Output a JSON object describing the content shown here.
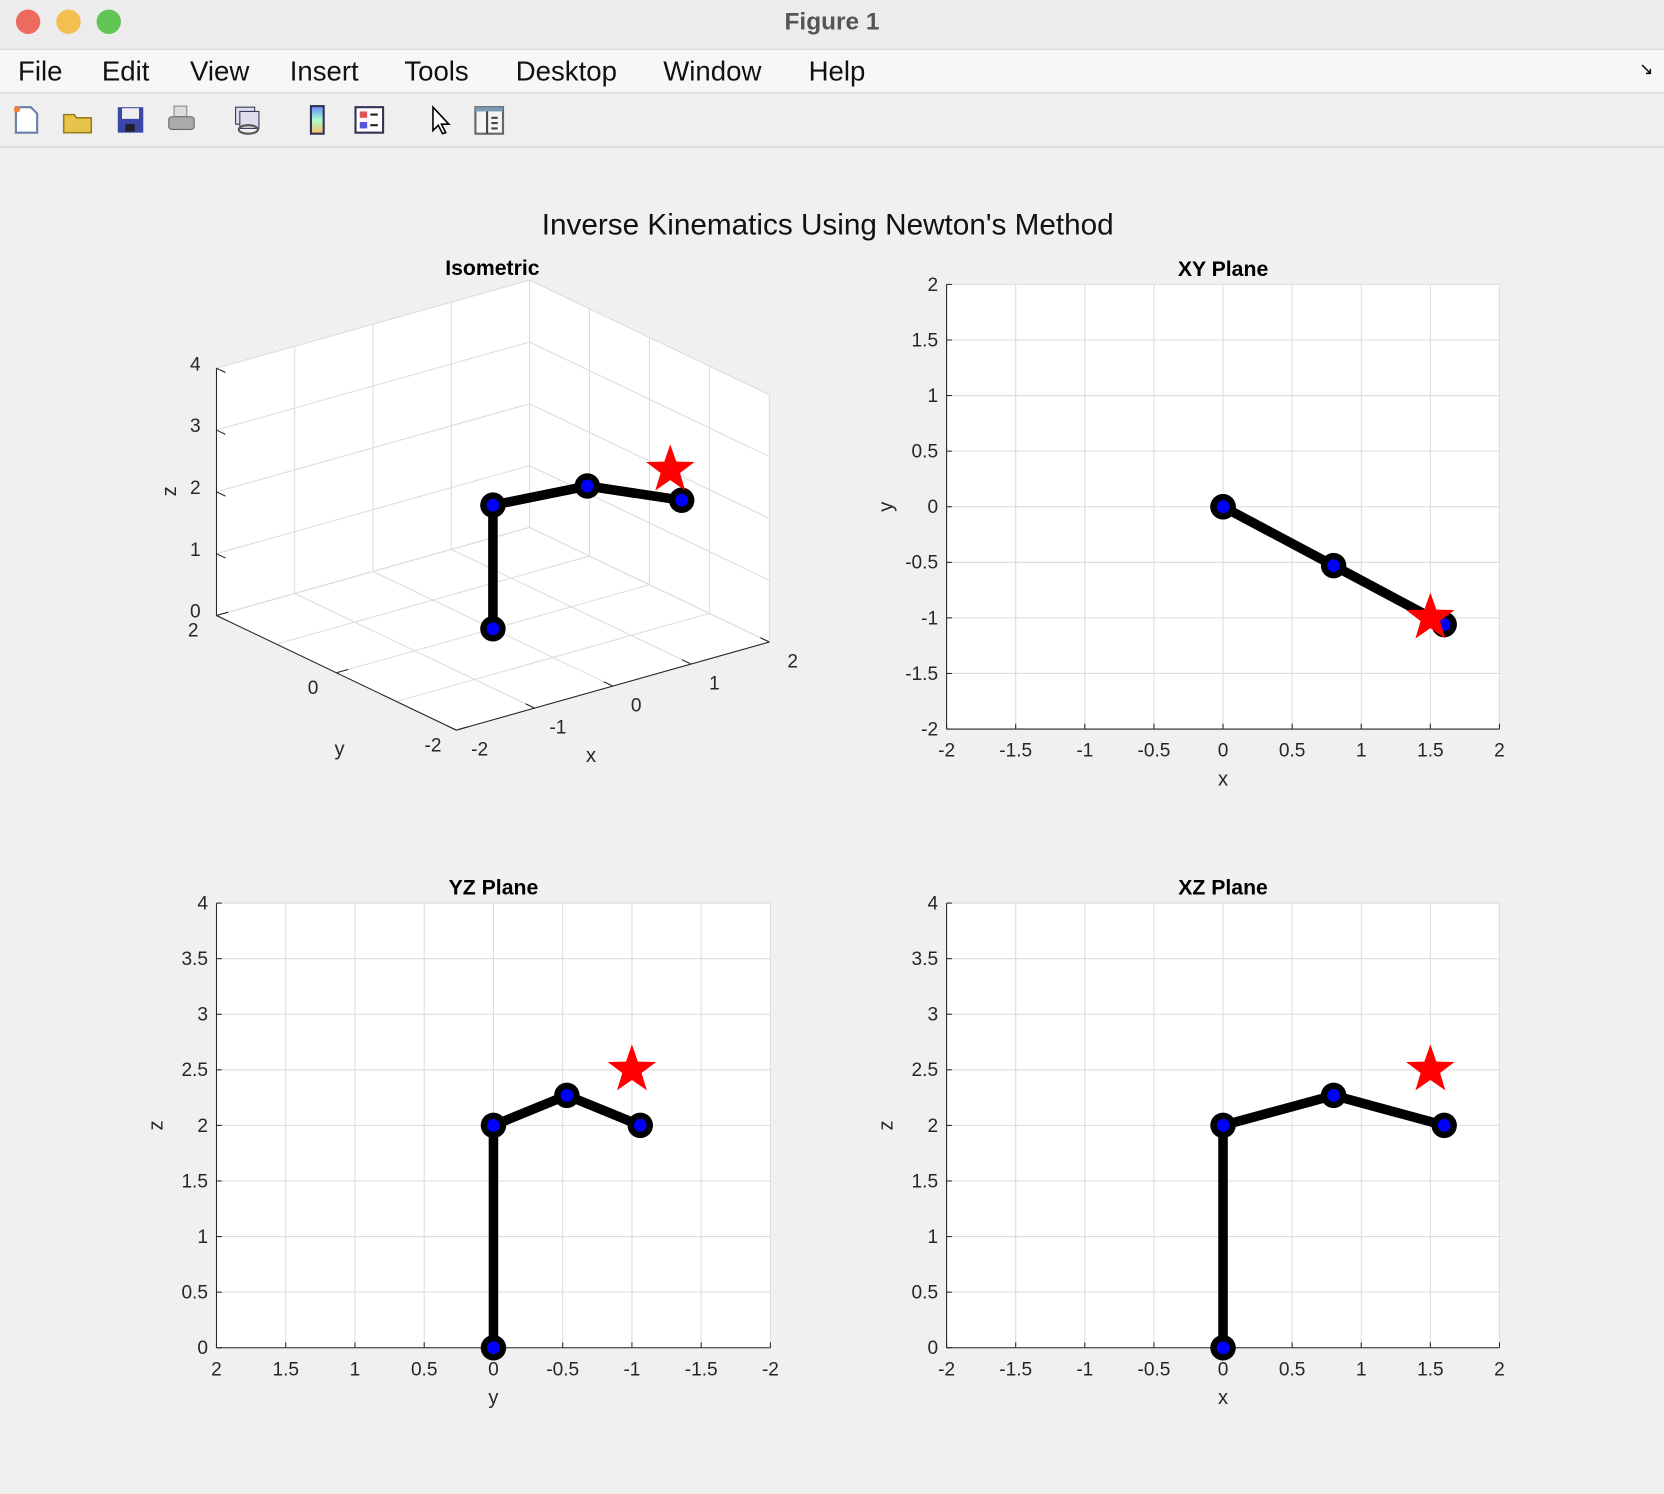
{
  "window": {
    "title": "Figure 1"
  },
  "menu": [
    "File",
    "Edit",
    "View",
    "Insert",
    "Tools",
    "Desktop",
    "Window",
    "Help"
  ],
  "toolbar": [
    "new-figure-icon",
    "open-file-icon",
    "save-icon",
    "print-icon",
    "link-plot-icon",
    "colorbar-icon",
    "legend-icon",
    "pointer-icon",
    "property-inspector-icon"
  ],
  "figure": {
    "title": "Inverse Kinematics Using Newton's Method"
  },
  "colors": {
    "link": "#000000",
    "joint": "#0000ff",
    "target": "#ff0000",
    "grid": "#dcdcdc"
  },
  "chart_data": [
    {
      "type": "line3d",
      "title": "Isometric",
      "xlabel": "x",
      "ylabel": "y",
      "zlabel": "z",
      "xlim": [
        -2,
        2
      ],
      "ylim": [
        -2,
        2
      ],
      "zlim": [
        0,
        4
      ],
      "grid": true,
      "xticks": [
        "-2",
        "-1",
        "0",
        "1",
        "2"
      ],
      "yticks": [
        "-2",
        "0",
        "2"
      ],
      "zticks": [
        "0",
        "1",
        "2",
        "3",
        "4"
      ],
      "joints": {
        "x": [
          0,
          0,
          0.8,
          1.6
        ],
        "y": [
          0,
          0,
          -0.53,
          -1.06
        ],
        "z": [
          0,
          2,
          2.27,
          2.0
        ]
      },
      "target": {
        "x": 1.5,
        "y": -1.0,
        "z": 2.5
      }
    },
    {
      "type": "line",
      "title": "XY Plane",
      "xlabel": "x",
      "ylabel": "y",
      "xlim": [
        -2,
        2
      ],
      "ylim": [
        -2,
        2
      ],
      "grid": true,
      "xticks": [
        "-2",
        "-1.5",
        "-1",
        "-0.5",
        "0",
        "0.5",
        "1",
        "1.5",
        "2"
      ],
      "yticks": [
        "-2",
        "-1.5",
        "-1",
        "-0.5",
        "0",
        "0.5",
        "1",
        "1.5",
        "2"
      ],
      "joints": {
        "x": [
          0,
          0,
          0.8,
          1.6
        ],
        "y": [
          0,
          0,
          -0.53,
          -1.06
        ]
      },
      "target": {
        "x": 1.5,
        "y": -1.0
      }
    },
    {
      "type": "line",
      "title": "YZ Plane",
      "xlabel": "y",
      "ylabel": "z",
      "xlim": [
        2,
        -2
      ],
      "ylim": [
        0,
        4
      ],
      "grid": true,
      "xticks": [
        "2",
        "1.5",
        "1",
        "0.5",
        "0",
        "-0.5",
        "-1",
        "-1.5",
        "-2"
      ],
      "yticks": [
        "0",
        "0.5",
        "1",
        "1.5",
        "2",
        "2.5",
        "3",
        "3.5",
        "4"
      ],
      "joints": {
        "x": [
          0,
          0,
          -0.53,
          -1.06
        ],
        "y": [
          0,
          2,
          2.27,
          2.0
        ]
      },
      "target": {
        "x": -1.0,
        "y": 2.5
      }
    },
    {
      "type": "line",
      "title": "XZ Plane",
      "xlabel": "x",
      "ylabel": "z",
      "xlim": [
        -2,
        2
      ],
      "ylim": [
        0,
        4
      ],
      "grid": true,
      "xticks": [
        "-2",
        "-1.5",
        "-1",
        "-0.5",
        "0",
        "0.5",
        "1",
        "1.5",
        "2"
      ],
      "yticks": [
        "0",
        "0.5",
        "1",
        "1.5",
        "2",
        "2.5",
        "3",
        "3.5",
        "4"
      ],
      "joints": {
        "x": [
          0,
          0,
          0.8,
          1.6
        ],
        "y": [
          0,
          2,
          2.27,
          2.0
        ]
      },
      "target": {
        "x": 1.5,
        "y": 2.5
      }
    }
  ]
}
